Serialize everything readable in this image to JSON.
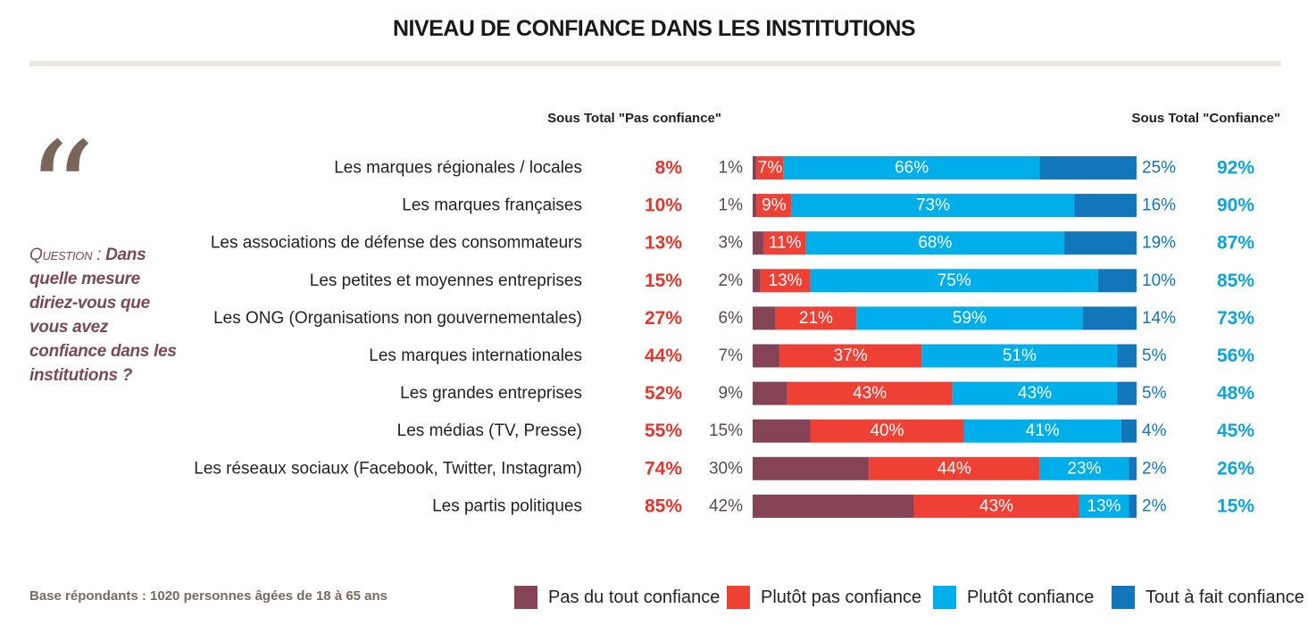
{
  "title": "NIVEAU DE CONFIANCE DANS LES INSTITUTIONS",
  "subheader_left": "Sous Total \"Pas confiance\"",
  "subheader_right": "Sous Total \"Confiance\"",
  "question_label": "Question :",
  "question_text": "Dans quelle mesure diriez-vous que vous avez confiance dans les institutions ?",
  "footnote": "Base répondants : 1020 personnes âgées de 18 à 65 ans",
  "colors": {
    "pas_du_tout": "#844456",
    "plutot_pas": "#ee4034",
    "plutot": "#00aeea",
    "tout_a_fait": "#1276bb",
    "subtotal_neg": "#e8352b",
    "subtotal_pos": "#0aa4e0"
  },
  "legend": [
    {
      "label": "Pas du tout confiance",
      "color": "#844456"
    },
    {
      "label": "Plutôt pas confiance",
      "color": "#ee4034"
    },
    {
      "label": "Plutôt confiance",
      "color": "#00aeea"
    },
    {
      "label": "Tout à fait confiance",
      "color": "#1276bb"
    }
  ],
  "chart_data": {
    "type": "bar",
    "stacked": true,
    "orientation": "horizontal",
    "title": "NIVEAU DE CONFIANCE DANS LES INSTITUTIONS",
    "categories": [
      "Les marques régionales / locales",
      "Les marques françaises",
      "Les associations de défense des consommateurs",
      "Les petites et moyennes entreprises",
      "Les ONG (Organisations non gouvernementales)",
      "Les marques internationales",
      "Les grandes entreprises",
      "Les médias (TV, Presse)",
      "Les réseaux sociaux (Facebook, Twitter, Instagram)",
      "Les partis politiques"
    ],
    "series": [
      {
        "name": "Pas du tout confiance",
        "values": [
          1,
          1,
          3,
          2,
          6,
          7,
          9,
          15,
          30,
          42
        ]
      },
      {
        "name": "Plutôt pas confiance",
        "values": [
          7,
          9,
          11,
          13,
          21,
          37,
          43,
          40,
          44,
          43
        ]
      },
      {
        "name": "Plutôt confiance",
        "values": [
          66,
          73,
          68,
          75,
          59,
          51,
          43,
          41,
          23,
          13
        ]
      },
      {
        "name": "Tout à fait confiance",
        "values": [
          25,
          16,
          19,
          10,
          14,
          5,
          5,
          4,
          2,
          2
        ]
      }
    ],
    "subtotal_pas_confiance": [
      8,
      10,
      13,
      15,
      27,
      44,
      52,
      55,
      74,
      85
    ],
    "subtotal_confiance": [
      92,
      90,
      87,
      85,
      73,
      56,
      48,
      45,
      26,
      15
    ],
    "unit": "%",
    "legend_position": "bottom"
  }
}
